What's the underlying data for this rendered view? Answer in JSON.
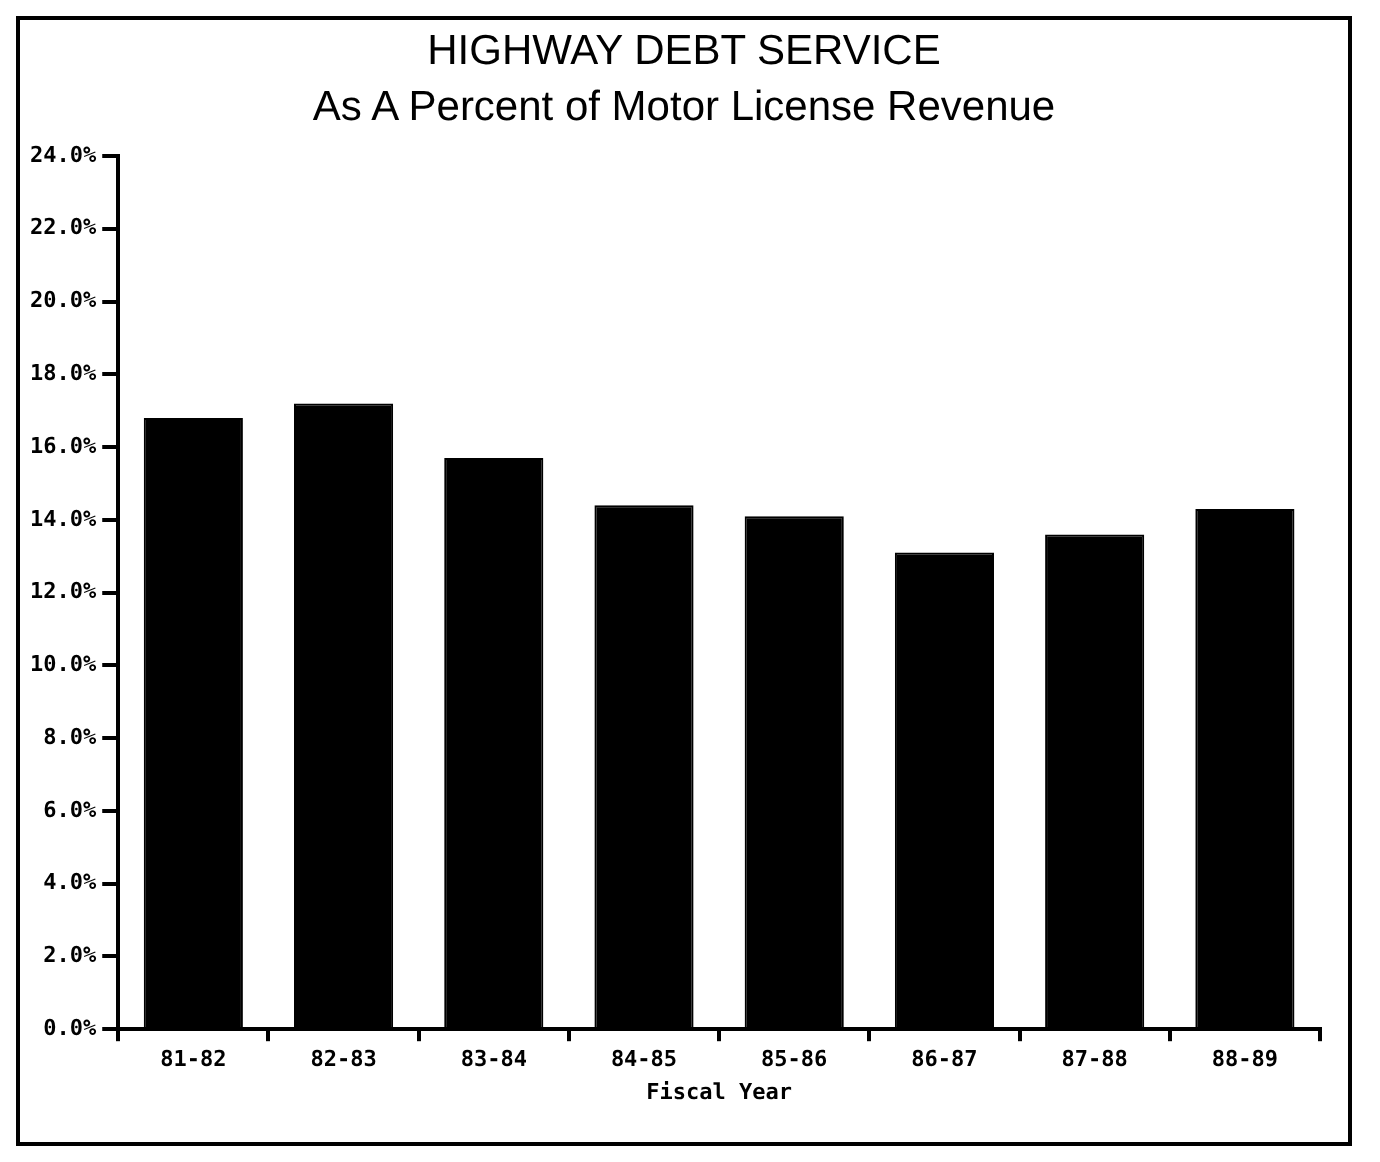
{
  "chart_data": {
    "type": "bar",
    "title": "HIGHWAY DEBT SERVICE",
    "subtitle": "As A Percent of Motor License Revenue",
    "xlabel": "Fiscal Year",
    "categories": [
      "81-82",
      "82-83",
      "83-84",
      "84-85",
      "85-86",
      "86-87",
      "87-88",
      "88-89"
    ],
    "values": [
      16.8,
      17.2,
      15.7,
      14.4,
      14.1,
      13.1,
      13.6,
      14.3
    ],
    "color": "#000000",
    "ylim": [
      0,
      24
    ],
    "yticks": [
      {
        "value": 0,
        "label": "0.0%"
      },
      {
        "value": 2,
        "label": "2.0%"
      },
      {
        "value": 4,
        "label": "4.0%"
      },
      {
        "value": 6,
        "label": "6.0%"
      },
      {
        "value": 8,
        "label": "8.0%"
      },
      {
        "value": 10,
        "label": "10.0%"
      },
      {
        "value": 12,
        "label": "12.0%"
      },
      {
        "value": 14,
        "label": "14.0%"
      },
      {
        "value": 16,
        "label": "16.0%"
      },
      {
        "value": 18,
        "label": "18.0%"
      },
      {
        "value": 20,
        "label": "20.0%"
      },
      {
        "value": 22,
        "label": "22.0%"
      },
      {
        "value": 24,
        "label": "24.0%"
      }
    ],
    "grid": false,
    "legend": false
  }
}
